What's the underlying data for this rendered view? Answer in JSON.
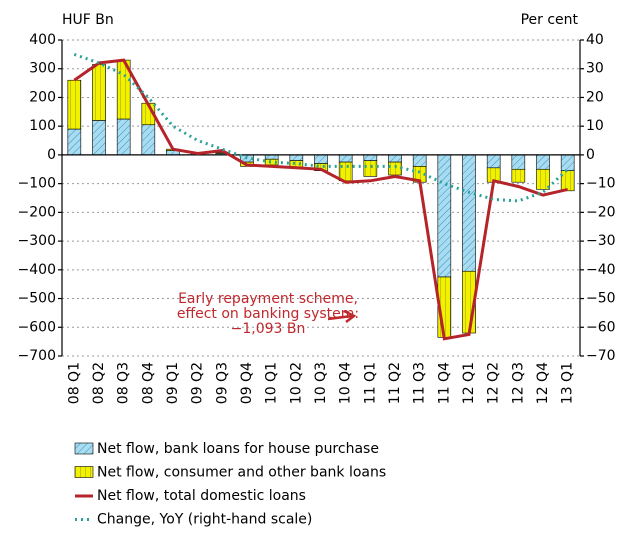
{
  "chart_data": {
    "type": "bar",
    "y_label": "HUF Bn",
    "y2_label": "Per cent",
    "categories": [
      "08 Q1",
      "08 Q2",
      "08 Q3",
      "08 Q4",
      "09 Q1",
      "09 Q2",
      "09 Q3",
      "09 Q4",
      "10 Q1",
      "10 Q2",
      "10 Q3",
      "10 Q4",
      "11 Q1",
      "11 Q2",
      "11 Q3",
      "11 Q4",
      "12 Q1",
      "12 Q2",
      "12 Q3",
      "12 Q4",
      "13 Q1"
    ],
    "series": [
      {
        "name": "Net flow, bank loans for house purchase",
        "type": "bar",
        "color": "#a8dcf0",
        "values": [
          90,
          120,
          125,
          105,
          15,
          5,
          5,
          -25,
          -15,
          -20,
          -30,
          -25,
          -20,
          -25,
          -40,
          -425,
          -405,
          -45,
          -50,
          -50,
          -55
        ]
      },
      {
        "name": "Net flow, consumer and other bank loans",
        "type": "bar",
        "color": "#f2f200",
        "values": [
          170,
          195,
          205,
          75,
          5,
          0,
          3,
          -15,
          -20,
          -25,
          -25,
          -65,
          -55,
          -45,
          -55,
          -210,
          -215,
          -50,
          -45,
          -70,
          -70
        ]
      },
      {
        "name": "Net flow, total domestic loans",
        "type": "line",
        "color": "#b5242a",
        "values": [
          260,
          320,
          330,
          175,
          20,
          5,
          15,
          -35,
          -40,
          -45,
          -50,
          -95,
          -90,
          -75,
          -90,
          -640,
          -625,
          -90,
          -110,
          -140,
          -120
        ]
      },
      {
        "name": "Change, YoY (right-hand scale)",
        "type": "line",
        "color": "#2aa198",
        "dashed": true,
        "axis": "y2",
        "values": [
          35,
          32,
          28,
          20,
          10,
          5,
          2,
          -1,
          -2.5,
          -3,
          -4,
          -4,
          -4,
          -4,
          -6,
          -10,
          -13,
          -15.5,
          -16,
          -13,
          -5
        ]
      }
    ],
    "ylim": [
      -700,
      400
    ],
    "yticks": [
      {
        "value": -700,
        "label": "−700"
      },
      {
        "value": -600,
        "label": "−600"
      },
      {
        "value": -500,
        "label": "−500"
      },
      {
        "value": -400,
        "label": "−400"
      },
      {
        "value": -300,
        "label": "−300"
      },
      {
        "value": -200,
        "label": "−200"
      },
      {
        "value": -100,
        "label": "−100"
      },
      0,
      100,
      200,
      300,
      400
    ],
    "y2lim": [
      -70,
      40
    ],
    "y2ticks": [
      {
        "value": -70,
        "label": "−70"
      },
      {
        "value": -60,
        "label": "−60"
      },
      {
        "value": -50,
        "label": "−50"
      },
      {
        "value": -40,
        "label": "−40"
      },
      {
        "value": -30,
        "label": "−30"
      },
      {
        "value": -20,
        "label": "−20"
      },
      {
        "value": -10,
        "label": "−10"
      },
      0,
      10,
      20,
      30,
      40
    ],
    "grid": true,
    "legend": "bottom",
    "annotation": {
      "lines": [
        "Early repayment scheme,",
        "effect on banking system:",
        "−1,093 Bn"
      ],
      "color": "#c0282d"
    }
  }
}
